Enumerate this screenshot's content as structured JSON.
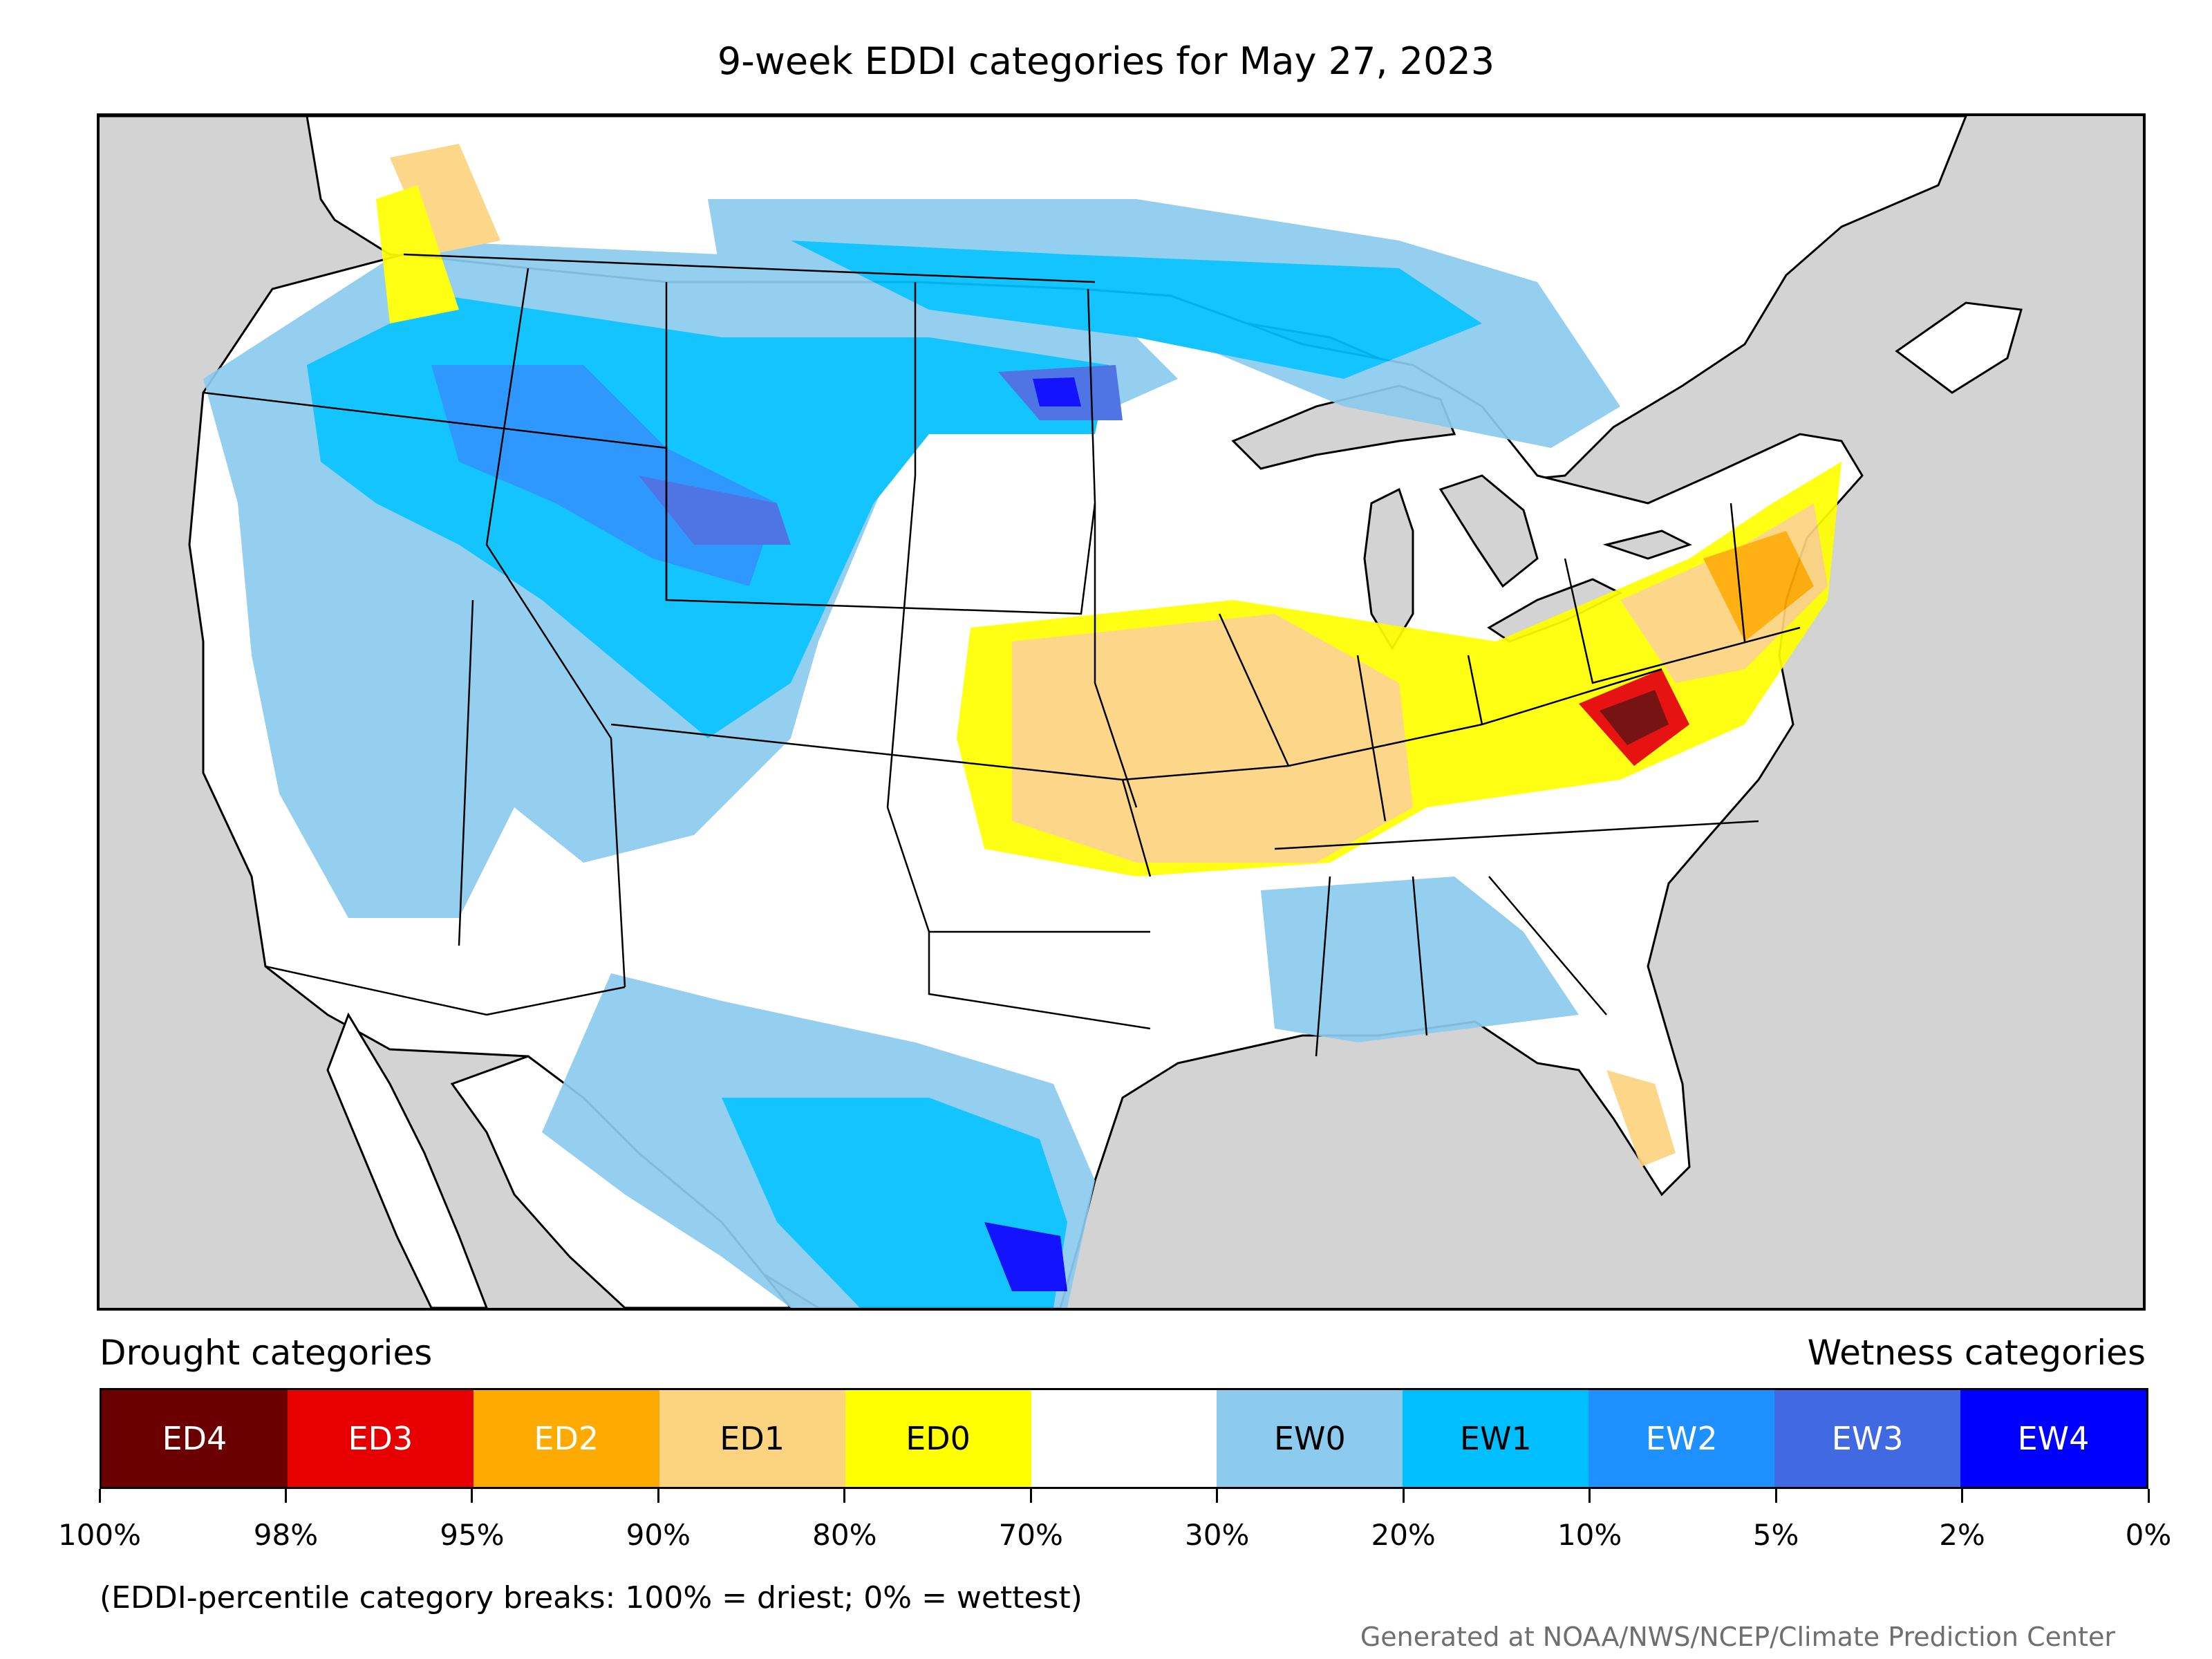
{
  "title": "9-week EDDI categories for May 27, 2023",
  "legend": {
    "left_heading": "Drought categories",
    "right_heading": "Wetness categories",
    "categories": [
      {
        "label": "ED4",
        "color": "#6b0000",
        "text_color": "#ffffff"
      },
      {
        "label": "ED3",
        "color": "#e60000",
        "text_color": "#ffffff"
      },
      {
        "label": "ED2",
        "color": "#ffaa00",
        "text_color": "#ffffff"
      },
      {
        "label": "ED1",
        "color": "#fcd37f",
        "text_color": "#000000"
      },
      {
        "label": "ED0",
        "color": "#ffff00",
        "text_color": "#000000"
      },
      {
        "label": "",
        "color": "#ffffff",
        "text_color": "#000000"
      },
      {
        "label": "EW0",
        "color": "#8ccbee",
        "text_color": "#000000"
      },
      {
        "label": "EW1",
        "color": "#00bfff",
        "text_color": "#000000"
      },
      {
        "label": "EW2",
        "color": "#1e90ff",
        "text_color": "#ffffff"
      },
      {
        "label": "EW3",
        "color": "#4169e1",
        "text_color": "#ffffff"
      },
      {
        "label": "EW4",
        "color": "#0000ff",
        "text_color": "#ffffff"
      }
    ],
    "ticks": [
      "100%",
      "98%",
      "95%",
      "90%",
      "80%",
      "70%",
      "30%",
      "20%",
      "10%",
      "5%",
      "2%",
      "0%"
    ]
  },
  "footnote": "(EDDI-percentile category breaks: 100% = driest; 0% = wettest)",
  "credit": "Generated at NOAA/NWS/NCEP/Climate Prediction Center",
  "map": {
    "background_color": "#d3d3d3",
    "land_color": "#ffffff",
    "border_color": "#000000"
  }
}
